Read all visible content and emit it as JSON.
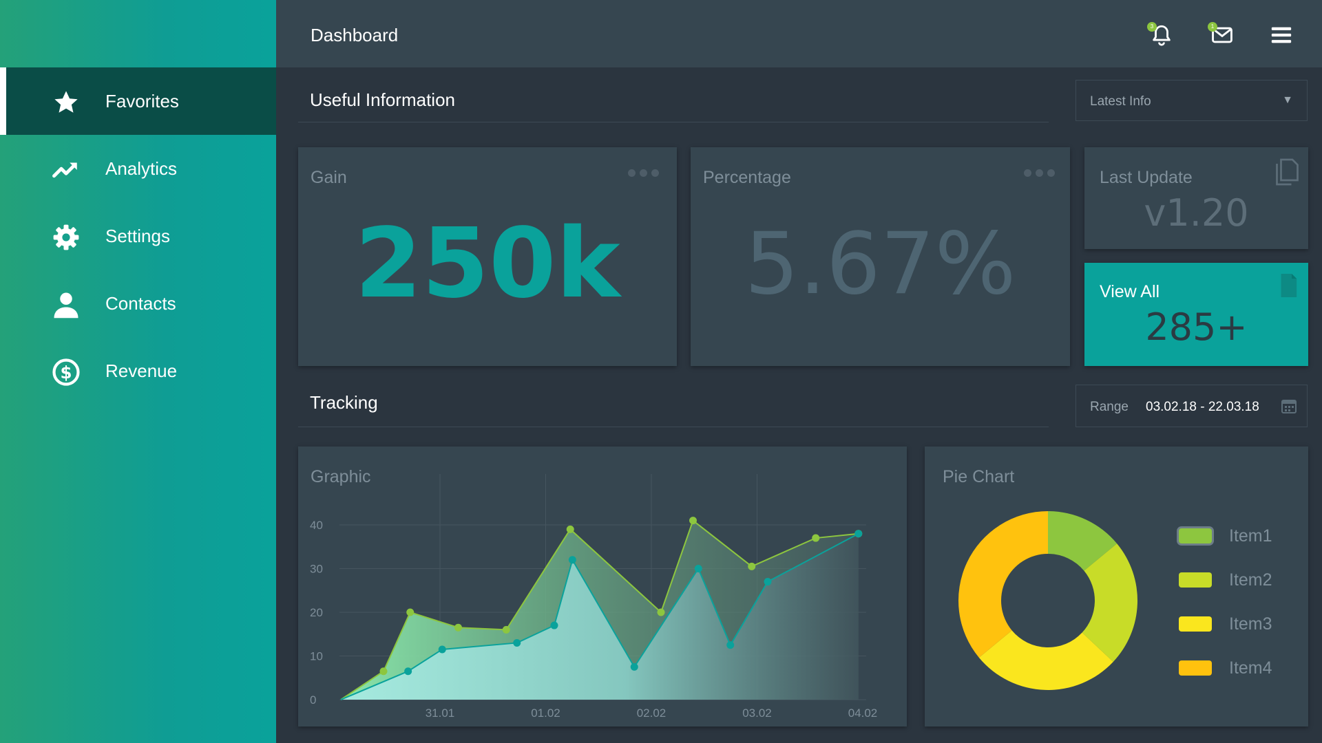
{
  "header": {
    "title": "Dashboard",
    "notifications_count": "3",
    "messages_count": "1"
  },
  "sidebar": {
    "items": [
      {
        "label": "Favorites",
        "icon": "star-icon",
        "active": true
      },
      {
        "label": "Analytics",
        "icon": "trending-up-icon"
      },
      {
        "label": "Settings",
        "icon": "gear-icon"
      },
      {
        "label": "Contacts",
        "icon": "user-icon"
      },
      {
        "label": "Revenue",
        "icon": "dollar-circle-icon"
      }
    ]
  },
  "useful_info": {
    "title": "Useful Information",
    "select_value": "Latest Info"
  },
  "cards": {
    "gain": {
      "title": "Gain",
      "value": "250k"
    },
    "percentage": {
      "title": "Percentage",
      "value": "5.67%"
    },
    "last_update": {
      "title": "Last Update",
      "value": "v1.20"
    },
    "view_all": {
      "title": "View All",
      "value": "285+"
    }
  },
  "tracking": {
    "title": "Tracking",
    "range_label": "Range",
    "range_value": "03.02.18 - 22.03.18"
  },
  "colors": {
    "accent": "#0aa29b",
    "gain_text": "#0aa29b",
    "percentage_text": "#4e6572",
    "green_series": "#8dc63f",
    "teal_series": "#0aa29b"
  },
  "chart_data": [
    {
      "type": "area",
      "title": "Graphic",
      "ylim": [
        0,
        45
      ],
      "y_ticks": [
        "0",
        "10",
        "20",
        "30",
        "40"
      ],
      "x_ticks": [
        "31.01",
        "01.02",
        "02.02",
        "03.02",
        "04.02"
      ],
      "grid": true,
      "series": [
        {
          "color": "#8dc63f",
          "points": [
            [
              0,
              0
            ],
            [
              0.4,
              6.5
            ],
            [
              0.65,
              20
            ],
            [
              1.1,
              16.5
            ],
            [
              1.55,
              16
            ],
            [
              2.15,
              39
            ],
            [
              3.0,
              20
            ],
            [
              3.3,
              41
            ],
            [
              3.85,
              30.5
            ],
            [
              4.45,
              37
            ],
            [
              4.85,
              38
            ]
          ]
        },
        {
          "color": "#0aa29b",
          "points": [
            [
              0,
              0
            ],
            [
              0.63,
              6.5
            ],
            [
              0.95,
              11.5
            ],
            [
              1.65,
              13
            ],
            [
              2.0,
              17
            ],
            [
              2.17,
              32
            ],
            [
              2.75,
              7.5
            ],
            [
              3.35,
              30
            ],
            [
              3.65,
              12.5
            ],
            [
              4.0,
              27
            ],
            [
              4.85,
              38
            ]
          ]
        }
      ]
    },
    {
      "type": "pie",
      "title": "Pie Chart",
      "donut": true,
      "labels": [
        "Item1",
        "Item2",
        "Item3",
        "Item4"
      ],
      "values": [
        14,
        23,
        27,
        36
      ],
      "colors": [
        "#8dc63f",
        "#c8dc28",
        "#fae61e",
        "#ffc20e"
      ]
    }
  ]
}
